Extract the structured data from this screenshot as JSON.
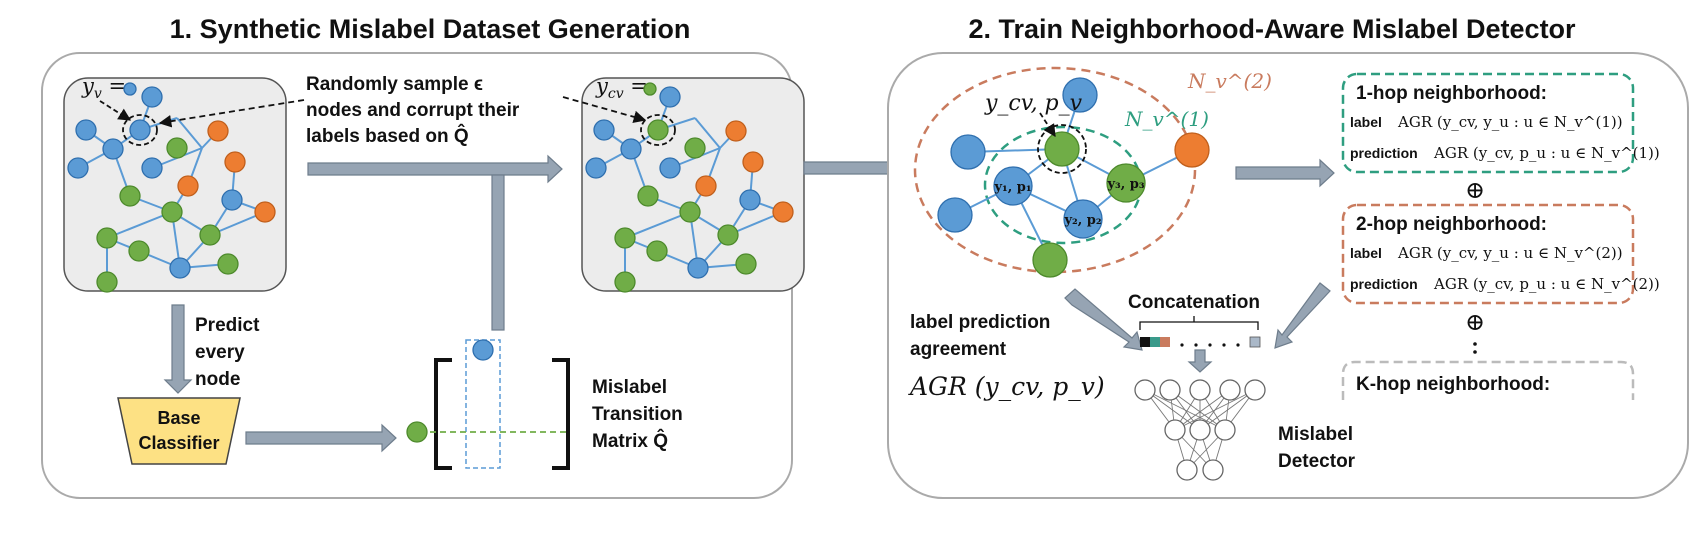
{
  "section1": {
    "title": "1. Synthetic Mislabel Dataset Generation",
    "sample_text_line1": "Randomly sample ϵ",
    "sample_text_line2": "nodes and corrupt their",
    "sample_text_line3": "labels based on Q̂",
    "node_label_left": "y",
    "node_label_left_sub": "v",
    "node_label_right": "y",
    "node_label_right_sub": "cv",
    "predict_line1": "Predict",
    "predict_line2": "every",
    "predict_line3": "node",
    "base_classifier_line1": "Base",
    "base_classifier_line2": "Classifier",
    "matrix_line1": "Mislabel",
    "matrix_line2": "Transition",
    "matrix_line3": "Matrix Q̂"
  },
  "section2": {
    "title": "2. Train Neighborhood-Aware Mislabel Detector",
    "center_label": "y_cv, p_v",
    "n1_label": "N_v^(1)",
    "n2_label": "N_v^(2)",
    "node_lbl_1": "y₁, p₁",
    "node_lbl_2": "y₂, p₂",
    "node_lbl_3": "y₃, p₃",
    "agreement_line1": "label prediction",
    "agreement_line2": "agreement",
    "agreement_formula": "AGR (y_cv, p_v)",
    "concatenation": "Concatenation",
    "detector_line1": "Mislabel",
    "detector_line2": "Detector",
    "hop1_title": "1-hop neighborhood:",
    "hop1_label_key": "label",
    "hop1_label_formula": "AGR (y_cv, y_u : u ∈ N_v^(1))",
    "hop1_pred_key": "prediction",
    "hop1_pred_formula": "AGR (y_cv, p_u : u ∈ N_v^(1))",
    "hop2_title": "2-hop neighborhood:",
    "hop2_label_key": "label",
    "hop2_label_formula": "AGR (y_cv, y_u : u ∈ N_v^(2))",
    "hop2_pred_key": "prediction",
    "hop2_pred_formula": "AGR (y_cv, p_u : u ∈ N_v^(2))",
    "hopk_title": "K-hop neighborhood:",
    "oplus1": "⊕",
    "oplus2": "⊕"
  },
  "colors": {
    "blue": "#5b9bd5",
    "green": "#70ad47",
    "orange": "#ed7d31",
    "teal": "#2e9e80",
    "rust": "#c97b5e",
    "classifier": "#fde184"
  }
}
